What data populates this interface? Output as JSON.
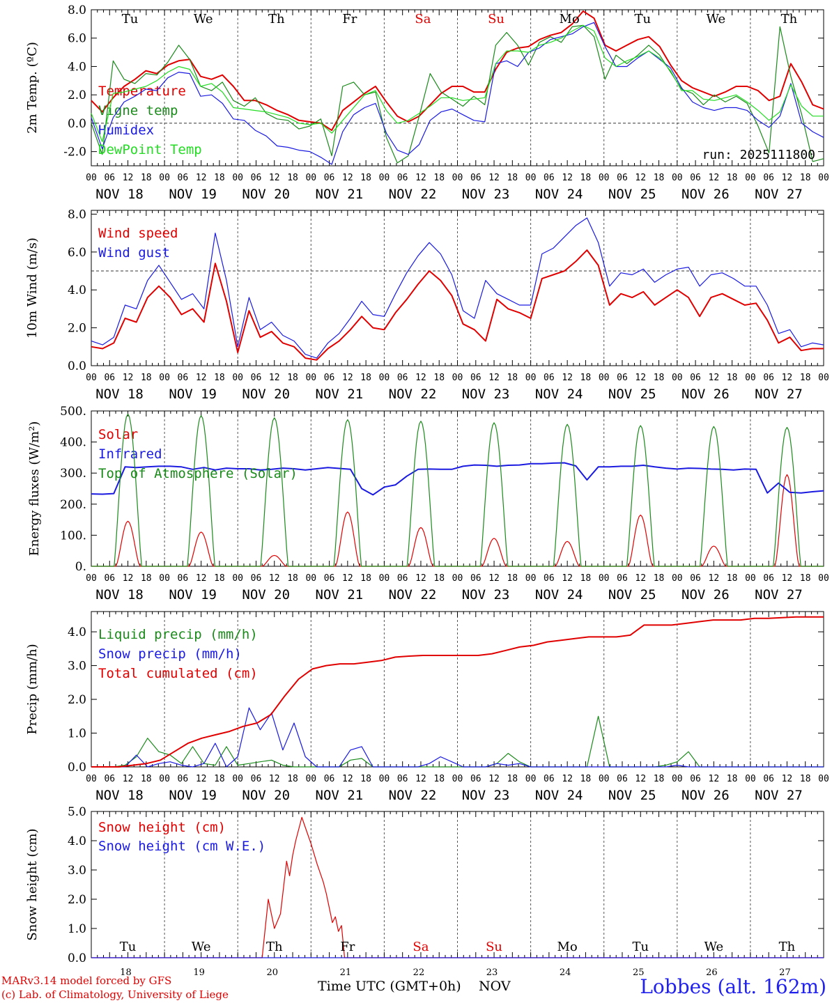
{
  "chart_data": {
    "type": "line",
    "time_axis": {
      "tick_hours": [
        "00",
        "06",
        "12",
        "18"
      ],
      "days": [
        "NOV 18",
        "NOV 19",
        "NOV 20",
        "NOV 21",
        "NOV 22",
        "NOV 23",
        "NOV 24",
        "NOV 25",
        "NOV 26",
        "NOV 27"
      ],
      "weekdays": [
        "Tu",
        "We",
        "Th",
        "Fr",
        "Sa",
        "Su",
        "Mo",
        "Tu",
        "We",
        "Th"
      ],
      "weekend_color": "#e00000",
      "day_numbers": [
        "18",
        "19",
        "20",
        "21",
        "22",
        "23",
        "24",
        "25",
        "26",
        "27"
      ],
      "title": "Time UTC (GMT+0h)",
      "unit": "NOV"
    },
    "panels": [
      {
        "id": "temperature",
        "ylabel": "2m Temp. (ºC)",
        "ylim": [
          -3,
          8
        ],
        "yticks": [
          -2,
          0,
          2,
          4,
          6,
          8
        ],
        "ytick_labels": [
          "-2.0",
          "0.0",
          "2.0",
          "4.0",
          "6.0",
          "8.0"
        ],
        "ref_line": 0,
        "annotation": "run: 2025111800",
        "series": [
          {
            "name": "Temperature",
            "color": "#e00000",
            "values": [
              1.6,
              0.8,
              1.8,
              2.6,
              3.1,
              3.7,
              3.5,
              4.1,
              4.4,
              4.5,
              3.3,
              3.1,
              3.4,
              2.6,
              1.6,
              1.6,
              1.3,
              0.9,
              0.6,
              0.2,
              0.1,
              0,
              -0.5,
              0.9,
              1.5,
              2.1,
              2.6,
              1.5,
              0.5,
              0.1,
              0.5,
              1.3,
              2.1,
              2.6,
              2.6,
              2.2,
              2.2,
              3.8,
              5,
              5.3,
              5.4,
              5.9,
              6.2,
              6.4,
              7.0,
              7.9,
              7.4,
              5.5,
              5.1,
              5.5,
              5.9,
              6.1,
              5.4,
              4.1,
              3,
              2.5,
              2.2,
              1.9,
              2.2,
              2.6,
              2.6,
              2.3,
              1.6,
              1.9,
              4.2,
              2.9,
              1.3,
              1
            ]
          },
          {
            "name": "Vigne temp",
            "color": "#1a8a1a",
            "values": [
              0,
              -2.2,
              4.4,
              3.1,
              2.8,
              3.5,
              3.4,
              4.3,
              5.5,
              4.5,
              2.6,
              2.3,
              2.9,
              1.6,
              1.2,
              1.8,
              0.7,
              0.3,
              0.2,
              -0.4,
              -0.2,
              0.3,
              -2.3,
              2.6,
              2.9,
              2.0,
              2.2,
              -1.0,
              -2.8,
              -2.3,
              0.5,
              3.5,
              2.2,
              1.7,
              1.2,
              1.9,
              1.3,
              5.5,
              6.4,
              5.5,
              4.1,
              5.7,
              6.1,
              5.7,
              6.8,
              6.9,
              6.1,
              3.1,
              4.8,
              4.2,
              4.8,
              5.5,
              4.8,
              3.6,
              2.4,
              2.1,
              1.3,
              2.0,
              1.5,
              1.9,
              1.4,
              -0.2,
              -2.1,
              6.8,
              3.3,
              0.6,
              -2.7,
              -2.5
            ]
          },
          {
            "name": "Humidex",
            "color": "#1a1ae0",
            "values": [
              0.4,
              -1.8,
              0.4,
              1.5,
              1.9,
              2.4,
              2.3,
              3.2,
              3.6,
              3.5,
              1.9,
              2.0,
              1.4,
              0.3,
              0.2,
              -0.5,
              -0.9,
              -1.6,
              -1.7,
              -1.9,
              -2.0,
              -2.4,
              -2.9,
              -0.6,
              0.6,
              1.1,
              1.4,
              -0.7,
              -1.9,
              -2.2,
              -1.5,
              0.2,
              0.8,
              1.0,
              0.6,
              0.2,
              0.1,
              4.2,
              4.4,
              4.0,
              5.0,
              5.3,
              5.9,
              6.1,
              6.3,
              6.8,
              7.1,
              5.4,
              4.0,
              4.0,
              4.6,
              5.1,
              4.5,
              3.9,
              2.5,
              1.5,
              1.1,
              0.9,
              1.1,
              1.1,
              0.9,
              0.2,
              -0.3,
              0.5,
              2.8,
              0,
              -0.6,
              -1.0
            ]
          },
          {
            "name": "DewPoint Temp",
            "color": "#22dd22",
            "values": [
              0.7,
              -1.3,
              2.1,
              2.2,
              2.4,
              2.6,
              3.0,
              3.6,
              4.0,
              3.8,
              2.6,
              2.8,
              2.2,
              1.1,
              1.0,
              0.9,
              0.8,
              0.6,
              0.4,
              0.0,
              -0.1,
              0.0,
              -0.7,
              0.2,
              1.1,
              2.0,
              2.3,
              0.9,
              0.0,
              0.2,
              0.7,
              1.2,
              1.8,
              1.8,
              1.6,
              1.7,
              1.8,
              4.2,
              5.1,
              5.1,
              5.0,
              5.5,
              5.7,
              6.0,
              6.5,
              6.9,
              6.5,
              4.6,
              4.0,
              4.4,
              4.7,
              5.1,
              4.6,
              3.7,
              2.3,
              2.3,
              1.7,
              1.6,
              1.8,
              2.0,
              1.5,
              0.9,
              0.2,
              0.8,
              2.7,
              1.2,
              0.5,
              0.5
            ]
          }
        ]
      },
      {
        "id": "wind",
        "ylabel": "10m Wind (m/s)",
        "ylim": [
          0,
          8.2
        ],
        "yticks": [
          0,
          2,
          4,
          6,
          8
        ],
        "ytick_labels": [
          "0.0",
          "2.0",
          "4.0",
          "6.0",
          "8.0"
        ],
        "ref_line": 5,
        "series": [
          {
            "name": "Wind speed",
            "color": "#e00000",
            "values": [
              1.0,
              0.9,
              1.2,
              2.5,
              2.3,
              3.6,
              4.2,
              3.6,
              2.7,
              3.0,
              2.3,
              5.4,
              3.4,
              0.7,
              2.9,
              1.5,
              1.8,
              1.2,
              1.0,
              0.4,
              0.3,
              0.9,
              1.3,
              1.9,
              2.6,
              2.0,
              1.9,
              2.8,
              3.5,
              4.3,
              5.0,
              4.5,
              3.7,
              2.2,
              1.9,
              1.3,
              3.5,
              3.0,
              2.8,
              2.5,
              4.6,
              4.8,
              5.0,
              5.5,
              6.1,
              5.3,
              3.2,
              3.8,
              3.6,
              3.9,
              3.2,
              3.6,
              4.0,
              3.6,
              2.6,
              3.6,
              3.8,
              3.5,
              3.2,
              3.3,
              2.4,
              1.2,
              1.5,
              0.8,
              0.9,
              0.9
            ]
          },
          {
            "name": "Wind gust",
            "color": "#1a1ae0",
            "values": [
              1.3,
              1.1,
              1.5,
              3.2,
              3.0,
              4.5,
              5.3,
              4.4,
              3.5,
              3.8,
              3.0,
              7.0,
              4.5,
              1.0,
              3.6,
              1.9,
              2.3,
              1.6,
              1.3,
              0.6,
              0.4,
              1.2,
              1.7,
              2.5,
              3.4,
              2.7,
              2.6,
              3.8,
              4.9,
              5.8,
              6.5,
              5.9,
              4.8,
              2.9,
              2.5,
              4.5,
              3.8,
              3.5,
              3.2,
              3.2,
              5.9,
              6.2,
              6.8,
              7.4,
              7.8,
              6.5,
              4.2,
              4.9,
              4.8,
              5.1,
              4.4,
              4.8,
              5.1,
              5.2,
              4.2,
              4.8,
              4.9,
              4.6,
              4.2,
              4.2,
              3.2,
              1.7,
              1.9,
              1.0,
              1.2,
              1.1
            ]
          }
        ]
      },
      {
        "id": "energy",
        "ylabel": "Energy fluxes (W/m²)",
        "ylim": [
          0,
          500
        ],
        "yticks": [
          0,
          100,
          200,
          300,
          400,
          500
        ],
        "ytick_labels": [
          "0.",
          "100.",
          "200.",
          "300.",
          "400.",
          "500."
        ],
        "series": [
          {
            "name": "Solar",
            "color": "#e00000",
            "daily_peaks": [
              145,
              110,
              35,
              175,
              125,
              90,
              80,
              165,
              65,
              295
            ]
          },
          {
            "name": "Infrared",
            "color": "#1a1ae0",
            "values": [
              233,
              232,
              234,
              320,
              318,
              320,
              322,
              322,
              320,
              312,
              318,
              310,
              316,
              314,
              314,
              310,
              312,
              316,
              314,
              310,
              314,
              318,
              315,
              312,
              250,
              230,
              255,
              262,
              290,
              312,
              313,
              312,
              312,
              322,
              326,
              325,
              322,
              325,
              326,
              330,
              330,
              332,
              333,
              323,
              278,
              320,
              320,
              322,
              322,
              325,
              320,
              316,
              313,
              316,
              315,
              313,
              312,
              310,
              313,
              312,
              236,
              268,
              238,
              236,
              240,
              243
            ]
          },
          {
            "name": "Top of Atmosphere (Solar)",
            "color": "#1a8a1a",
            "daily_peaks": [
              490,
              485,
              478,
              472,
              467,
              462,
              457,
              453,
              450,
              447
            ]
          }
        ]
      },
      {
        "id": "precip",
        "ylabel": "Precip (mm/h)",
        "ylim": [
          0,
          4.6
        ],
        "yticks": [
          0,
          1,
          2,
          3,
          4
        ],
        "ytick_labels": [
          "0.0",
          "1.0",
          "2.0",
          "3.0",
          "4.0"
        ],
        "series": [
          {
            "name": "Liquid precip (mm/h)",
            "color": "#1a8a1a",
            "values": [
              0,
              0,
              0,
              0.05,
              0.3,
              0.85,
              0.45,
              0.35,
              0.1,
              0.6,
              0.1,
              0.05,
              0.6,
              0.05,
              0.1,
              0.15,
              0.2,
              0.05,
              0,
              0,
              0,
              0,
              0,
              0.2,
              0.25,
              0,
              0,
              0,
              0,
              0,
              0,
              0,
              0,
              0,
              0,
              0,
              0.1,
              0.4,
              0.15,
              0,
              0,
              0,
              0,
              0,
              0,
              1.5,
              0,
              0,
              0,
              0,
              0,
              0.05,
              0.15,
              0.45,
              0,
              0,
              0,
              0,
              0,
              0,
              0,
              0,
              0,
              0,
              0,
              0
            ]
          },
          {
            "name": "Snow precip (mm/h)",
            "color": "#1a1ae0",
            "values": [
              0,
              0,
              0,
              0,
              0.35,
              0,
              0.1,
              0.15,
              0.05,
              0,
              0.1,
              0.7,
              0,
              0.3,
              1.75,
              1.1,
              1.6,
              0.5,
              1.3,
              0.3,
              0,
              0,
              0,
              0.5,
              0.6,
              0,
              0,
              0,
              0,
              0,
              0.1,
              0.3,
              0.15,
              0,
              0,
              0,
              0.1,
              0.05,
              0.1,
              0,
              0,
              0,
              0,
              0,
              0,
              0,
              0,
              0,
              0,
              0,
              0,
              0,
              0.05,
              0,
              0,
              0,
              0,
              0,
              0,
              0,
              0,
              0,
              0,
              0,
              0,
              0
            ]
          },
          {
            "name": "Total cumulated (cm)",
            "color": "#e00000",
            "values": [
              0,
              0,
              0,
              0.05,
              0.1,
              0.2,
              0.45,
              0.7,
              0.85,
              0.95,
              1.05,
              1.2,
              1.3,
              1.55,
              2.1,
              2.6,
              2.9,
              3.0,
              3.05,
              3.05,
              3.1,
              3.15,
              3.25,
              3.28,
              3.3,
              3.3,
              3.3,
              3.3,
              3.3,
              3.35,
              3.45,
              3.55,
              3.6,
              3.7,
              3.75,
              3.8,
              3.85,
              3.85,
              3.85,
              3.9,
              4.2,
              4.2,
              4.2,
              4.25,
              4.3,
              4.35,
              4.35,
              4.35,
              4.4,
              4.4,
              4.42,
              4.44,
              4.44,
              4.44
            ]
          }
        ]
      },
      {
        "id": "snow",
        "ylabel": "Snow height (cm)",
        "ylim": [
          0,
          5
        ],
        "yticks": [
          0,
          1,
          2,
          3,
          4,
          5
        ],
        "ytick_labels": [
          "0.0",
          "1.0",
          "2.0",
          "3.0",
          "4.0",
          "5.0"
        ],
        "series": [
          {
            "name": "Snow height (cm)",
            "color": "#e00000",
            "times_h": [
              0,
              56,
              58,
              60,
              62,
              64,
              65,
              66,
              67,
              69,
              70,
              72,
              74,
              76,
              77,
              78,
              79,
              80,
              81,
              82,
              83,
              84,
              85,
              240
            ],
            "values": [
              0,
              0,
              2.0,
              1.0,
              1.5,
              3.3,
              2.8,
              3.5,
              4.0,
              4.8,
              4.5,
              3.9,
              3.2,
              2.6,
              2.2,
              1.7,
              1.2,
              1.4,
              0.9,
              1.1,
              0,
              0,
              0,
              0
            ]
          },
          {
            "name": "Snow height (cm W.E.)",
            "color": "#1a1ae0",
            "values": [
              0,
              0
            ]
          }
        ]
      }
    ]
  },
  "footer": {
    "credit_line1": "MARv3.14 model forced by GFS",
    "credit_line2": "(c) Lab. of Climatology, University of Liege",
    "station": "Lobbes (alt. 162m)"
  }
}
